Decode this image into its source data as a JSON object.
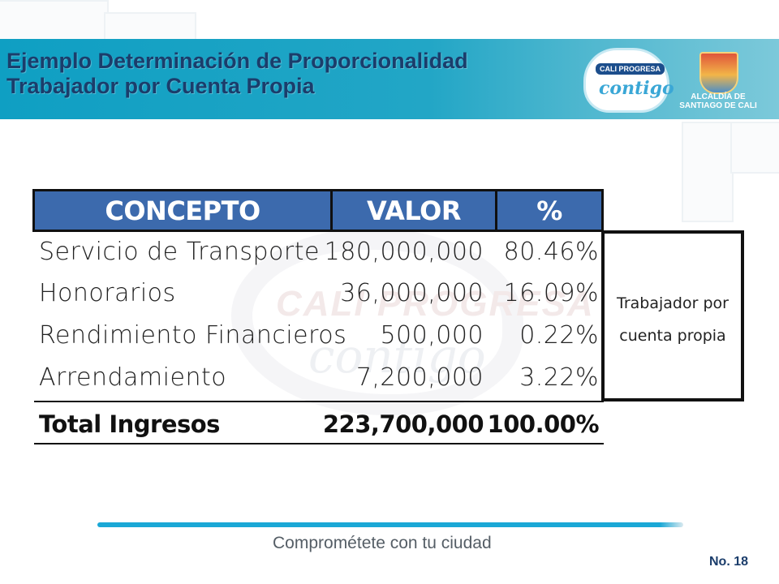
{
  "header": {
    "title_line1": "Ejemplo Determinación de Proporcionalidad",
    "title_line2": "Trabajador por Cuenta Propia",
    "logo_badge": "CALI PROGRESA",
    "logo_script": "contigo",
    "alcaldia_line1": "ALCALDÍA DE",
    "alcaldia_line2": "SANTIAGO DE CALI",
    "band_color": "#1a9fc4",
    "title_color": "#1b3d6b"
  },
  "table": {
    "columns": [
      "CONCEPTO",
      "VALOR",
      "%"
    ],
    "header_color": "#3c6aad",
    "rows": [
      {
        "concepto": "Servicio de Transporte",
        "valor": "180,000,000",
        "pct": "80.46%"
      },
      {
        "concepto": "Honorarios",
        "valor": "36,000,000",
        "pct": "16.09%"
      },
      {
        "concepto": "Rendimiento Financieros",
        "valor": "500,000",
        "pct": "0.22%"
      },
      {
        "concepto": "Arrendamiento",
        "valor": "7,200,000",
        "pct": "3.22%"
      }
    ],
    "total": {
      "concepto": "Total Ingresos",
      "valor": "223,700,000",
      "pct": "100.00%"
    },
    "side_note_line1": "Trabajador por",
    "side_note_line2": "cuenta propia"
  },
  "footer": {
    "slogan": "Comprométete con tu ciudad",
    "page_number": "No. 18",
    "line_color": "#1aa8d6"
  }
}
